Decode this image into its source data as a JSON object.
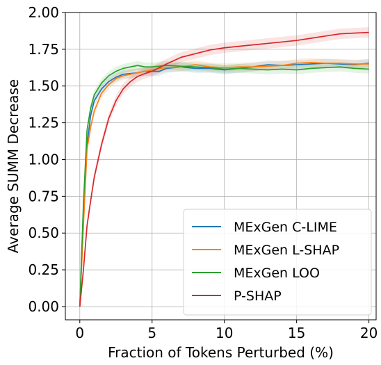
{
  "chart_data": {
    "type": "line",
    "title": "",
    "xlabel": "Fraction of Tokens Perturbed (%)",
    "ylabel": "Average SUMM Decrease",
    "xlim": [
      -1,
      20.5
    ],
    "ylim": [
      -0.09,
      2.0
    ],
    "x_ticks": [
      0,
      5,
      10,
      15,
      20
    ],
    "x_tick_labels": [
      "0",
      "5",
      "10",
      "15",
      "20"
    ],
    "y_ticks": [
      0.0,
      0.25,
      0.5,
      0.75,
      1.0,
      1.25,
      1.5,
      1.75,
      2.0
    ],
    "y_tick_labels": [
      "0.00",
      "0.25",
      "0.50",
      "0.75",
      "1.00",
      "1.25",
      "1.50",
      "1.75",
      "2.00"
    ],
    "grid": true,
    "legend_position": "lower-right",
    "series": [
      {
        "name": "MExGen C-LIME",
        "color": "#1f77b4",
        "band": 0.03,
        "x": [
          0,
          0.25,
          0.5,
          0.75,
          1,
          1.5,
          2,
          2.5,
          3,
          3.5,
          4,
          4.5,
          5,
          5.5,
          6,
          7,
          8,
          9,
          10,
          11,
          12,
          13,
          14,
          15,
          16,
          17,
          18,
          19,
          20
        ],
        "y": [
          0.0,
          0.6,
          1.1,
          1.3,
          1.4,
          1.48,
          1.53,
          1.56,
          1.58,
          1.585,
          1.59,
          1.6,
          1.6,
          1.6,
          1.62,
          1.63,
          1.62,
          1.62,
          1.61,
          1.62,
          1.63,
          1.645,
          1.64,
          1.645,
          1.65,
          1.655,
          1.65,
          1.645,
          1.655
        ]
      },
      {
        "name": "MExGen L-SHAP",
        "color": "#ff7f0e",
        "band": 0.03,
        "x": [
          0,
          0.25,
          0.5,
          0.75,
          1,
          1.5,
          2,
          2.5,
          3,
          3.5,
          4,
          4.5,
          5,
          5.5,
          6,
          7,
          8,
          9,
          10,
          11,
          12,
          13,
          14,
          15,
          16,
          17,
          18,
          19,
          20
        ],
        "y": [
          0.0,
          0.55,
          1.07,
          1.22,
          1.33,
          1.45,
          1.51,
          1.55,
          1.57,
          1.58,
          1.59,
          1.6,
          1.61,
          1.62,
          1.625,
          1.63,
          1.645,
          1.63,
          1.625,
          1.63,
          1.63,
          1.635,
          1.64,
          1.655,
          1.66,
          1.655,
          1.655,
          1.65,
          1.65
        ]
      },
      {
        "name": "MExGen LOO",
        "color": "#2ca02c",
        "band": 0.03,
        "x": [
          0,
          0.25,
          0.5,
          0.75,
          1,
          1.5,
          2,
          2.5,
          3,
          3.5,
          4,
          4.5,
          5,
          5.5,
          6,
          7,
          8,
          9,
          10,
          11,
          12,
          13,
          14,
          15,
          16,
          17,
          18,
          19,
          20
        ],
        "y": [
          0.0,
          0.7,
          1.2,
          1.35,
          1.44,
          1.52,
          1.57,
          1.6,
          1.62,
          1.63,
          1.64,
          1.63,
          1.63,
          1.635,
          1.64,
          1.635,
          1.63,
          1.625,
          1.615,
          1.62,
          1.615,
          1.61,
          1.615,
          1.61,
          1.62,
          1.625,
          1.63,
          1.62,
          1.615
        ]
      },
      {
        "name": "P-SHAP",
        "color": "#d62728",
        "band": 0.035,
        "x": [
          0,
          0.25,
          0.5,
          0.75,
          1,
          1.5,
          2,
          2.5,
          3,
          3.5,
          4,
          4.5,
          5,
          5.5,
          6,
          7,
          8,
          9,
          10,
          11,
          12,
          13,
          14,
          15,
          16,
          17,
          18,
          19,
          20
        ],
        "y": [
          0.0,
          0.25,
          0.55,
          0.72,
          0.88,
          1.1,
          1.28,
          1.4,
          1.48,
          1.53,
          1.565,
          1.585,
          1.6,
          1.625,
          1.65,
          1.695,
          1.72,
          1.745,
          1.76,
          1.77,
          1.78,
          1.79,
          1.8,
          1.81,
          1.825,
          1.84,
          1.855,
          1.86,
          1.865
        ]
      }
    ]
  }
}
